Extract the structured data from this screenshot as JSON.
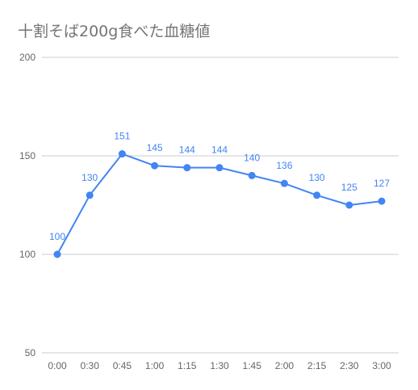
{
  "chart_data": {
    "type": "line",
    "title": "十割そば200g食べた血糖値",
    "xlabel": "",
    "ylabel": "",
    "categories": [
      "0:00",
      "0:30",
      "0:45",
      "1:00",
      "1:15",
      "1:30",
      "1:45",
      "2:00",
      "2:15",
      "2:30",
      "3:00"
    ],
    "series": [
      {
        "values": [
          100,
          130,
          151,
          145,
          144,
          144,
          140,
          136,
          130,
          125,
          127
        ]
      }
    ],
    "ylim": [
      50,
      200
    ],
    "yticks": [
      50,
      100,
      150,
      200
    ],
    "grid": true,
    "legend": "none",
    "data_labels": true,
    "colors": {
      "line": "#4285f4",
      "grid": "#cccccc",
      "tick_text": "#666666",
      "title": "#757575"
    }
  }
}
